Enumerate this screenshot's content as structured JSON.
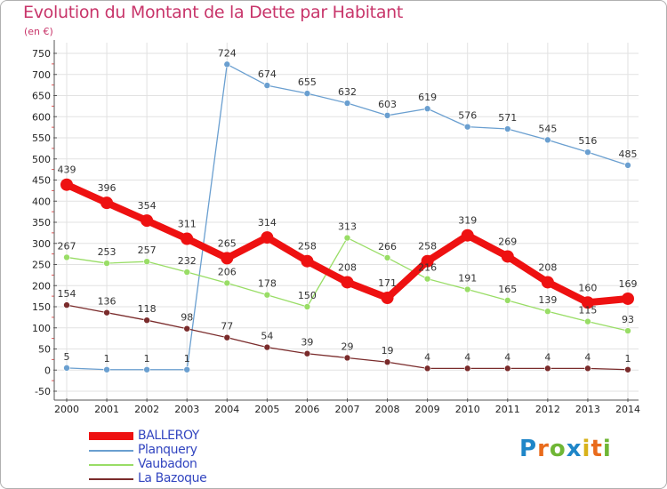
{
  "page": {
    "title": "Evolution du Montant de la Dette par Habitant",
    "subtitle": "(en €)",
    "logo_text": "Proxiti"
  },
  "colors": {
    "title": "#c8356a",
    "grid": "#e0e0e0",
    "axis": "#555555",
    "legend_text": "#3346c0"
  },
  "chart_data": {
    "type": "line",
    "title": "Evolution du Montant de la Dette par Habitant",
    "subtitle": "(en €)",
    "xlabel": "",
    "ylabel": "",
    "x": [
      2000,
      2001,
      2002,
      2003,
      2004,
      2005,
      2006,
      2007,
      2008,
      2009,
      2010,
      2011,
      2012,
      2013,
      2014
    ],
    "ylim": [
      -50,
      750
    ],
    "yticks": [
      -50,
      0,
      50,
      100,
      150,
      200,
      250,
      300,
      350,
      400,
      450,
      500,
      550,
      600,
      650,
      700,
      750
    ],
    "grid": true,
    "legend_position": "bottom-left",
    "series": [
      {
        "name": "BALLEROY",
        "color": "#ee1111",
        "values": [
          439,
          396,
          354,
          311,
          265,
          314,
          258,
          208,
          171,
          258,
          319,
          269,
          208,
          160,
          169
        ]
      },
      {
        "name": "Planquery",
        "color": "#6a9fd0",
        "values": [
          5,
          1,
          1,
          1,
          724,
          674,
          655,
          632,
          603,
          619,
          576,
          571,
          545,
          516,
          485
        ]
      },
      {
        "name": "Vaubadon",
        "color": "#99dd66",
        "values": [
          267,
          253,
          257,
          232,
          206,
          178,
          150,
          313,
          266,
          216,
          191,
          165,
          139,
          115,
          93
        ]
      },
      {
        "name": "La Bazoque",
        "color": "#7a2b2b",
        "values": [
          154,
          136,
          118,
          98,
          77,
          54,
          39,
          29,
          19,
          4,
          4,
          4,
          4,
          4,
          1
        ]
      }
    ]
  }
}
